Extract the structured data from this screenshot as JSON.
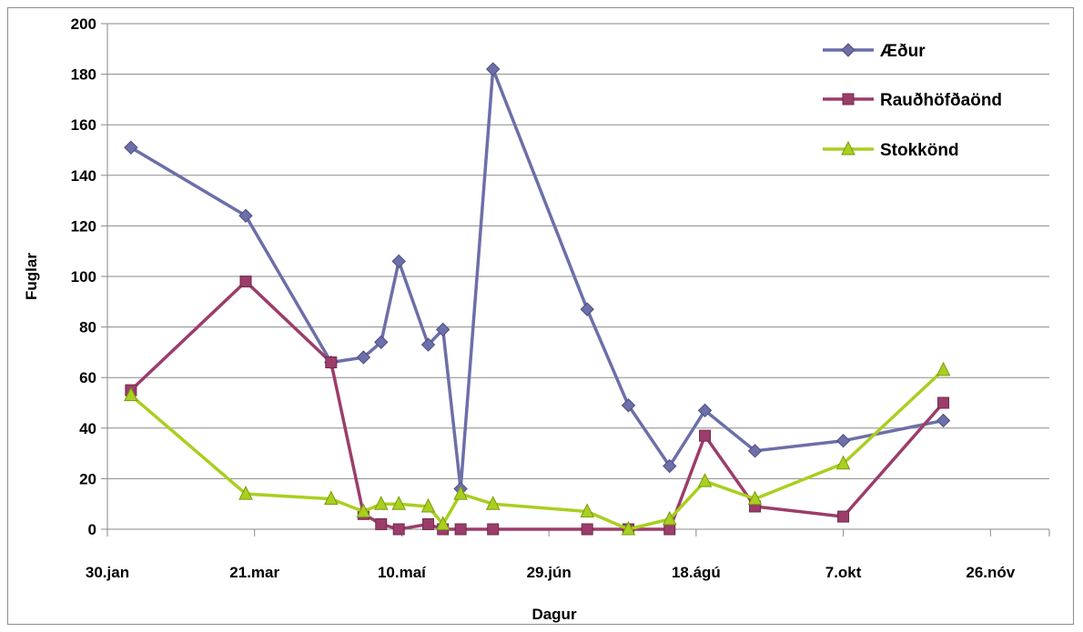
{
  "chart_data": {
    "type": "line",
    "title": "",
    "xlabel": "Dagur",
    "ylabel": "Fuglar",
    "ylim": [
      0,
      200
    ],
    "yticks": [
      0,
      20,
      40,
      60,
      80,
      100,
      120,
      140,
      160,
      180,
      200
    ],
    "xlim_days": [
      30,
      350
    ],
    "xticks": [
      {
        "day": 30,
        "label": "30.jan"
      },
      {
        "day": 80,
        "label": "21.mar"
      },
      {
        "day": 130,
        "label": "10.maí"
      },
      {
        "day": 180,
        "label": "29.jún"
      },
      {
        "day": 230,
        "label": "18.ágú"
      },
      {
        "day": 280,
        "label": "7.okt"
      },
      {
        "day": 330,
        "label": "26.nóv"
      }
    ],
    "grid": "horizontal",
    "legend_position": "top-right",
    "series": [
      {
        "name": "Æður",
        "color": "#6c6fa8",
        "marker": "diamond",
        "points": [
          {
            "day": 38,
            "value": 151
          },
          {
            "day": 77,
            "value": 124
          },
          {
            "day": 106,
            "value": 66
          },
          {
            "day": 117,
            "value": 68
          },
          {
            "day": 123,
            "value": 74
          },
          {
            "day": 129,
            "value": 106
          },
          {
            "day": 139,
            "value": 73
          },
          {
            "day": 144,
            "value": 79
          },
          {
            "day": 150,
            "value": 16
          },
          {
            "day": 161,
            "value": 182
          },
          {
            "day": 193,
            "value": 87
          },
          {
            "day": 207,
            "value": 49
          },
          {
            "day": 221,
            "value": 25
          },
          {
            "day": 233,
            "value": 47
          },
          {
            "day": 250,
            "value": 31
          },
          {
            "day": 280,
            "value": 35
          },
          {
            "day": 314,
            "value": 43
          }
        ]
      },
      {
        "name": "Rauðhöfðaönd",
        "color": "#9b3d6a",
        "marker": "square",
        "points": [
          {
            "day": 38,
            "value": 55
          },
          {
            "day": 77,
            "value": 98
          },
          {
            "day": 106,
            "value": 66
          },
          {
            "day": 117,
            "value": 6
          },
          {
            "day": 123,
            "value": 2
          },
          {
            "day": 129,
            "value": 0
          },
          {
            "day": 139,
            "value": 2
          },
          {
            "day": 144,
            "value": 0
          },
          {
            "day": 150,
            "value": 0
          },
          {
            "day": 161,
            "value": 0
          },
          {
            "day": 193,
            "value": 0
          },
          {
            "day": 207,
            "value": 0
          },
          {
            "day": 221,
            "value": 0
          },
          {
            "day": 233,
            "value": 37
          },
          {
            "day": 250,
            "value": 9
          },
          {
            "day": 280,
            "value": 5
          },
          {
            "day": 314,
            "value": 50
          }
        ]
      },
      {
        "name": "Stokkönd",
        "color": "#a9cf1f",
        "marker": "triangle",
        "points": [
          {
            "day": 38,
            "value": 53
          },
          {
            "day": 77,
            "value": 14
          },
          {
            "day": 106,
            "value": 12
          },
          {
            "day": 117,
            "value": 7
          },
          {
            "day": 123,
            "value": 10
          },
          {
            "day": 129,
            "value": 10
          },
          {
            "day": 139,
            "value": 9
          },
          {
            "day": 144,
            "value": 2
          },
          {
            "day": 150,
            "value": 14
          },
          {
            "day": 161,
            "value": 10
          },
          {
            "day": 193,
            "value": 7
          },
          {
            "day": 207,
            "value": 0
          },
          {
            "day": 221,
            "value": 4
          },
          {
            "day": 233,
            "value": 19
          },
          {
            "day": 250,
            "value": 12
          },
          {
            "day": 280,
            "value": 26
          },
          {
            "day": 314,
            "value": 63
          }
        ]
      }
    ]
  }
}
